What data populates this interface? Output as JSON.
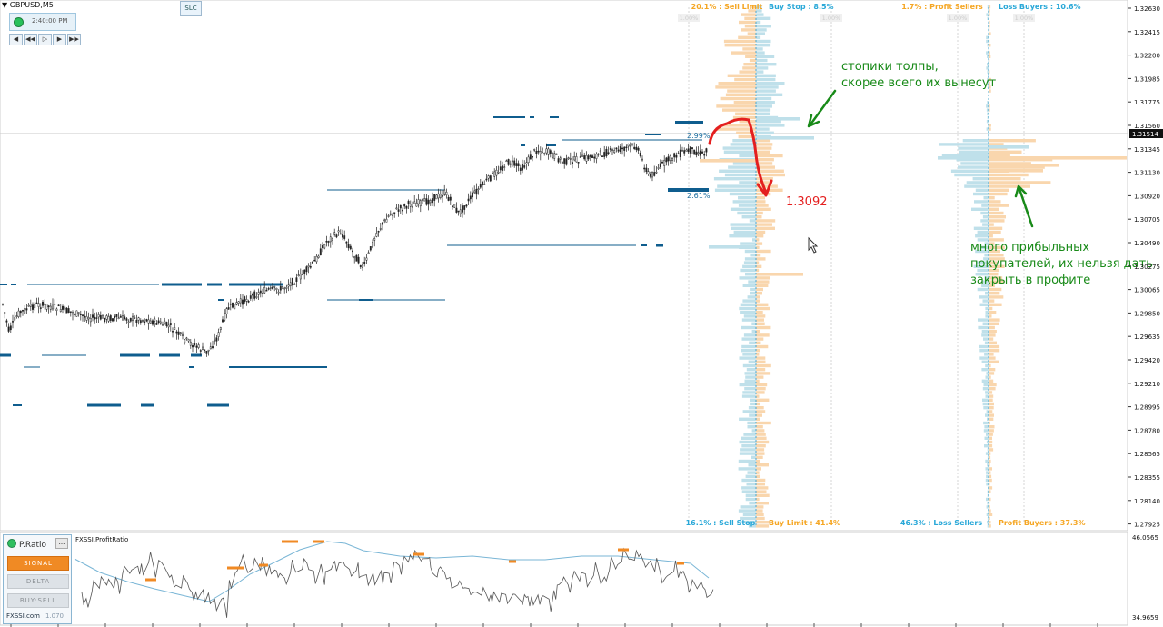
{
  "window": {
    "symbol": "GBPUSD,M5"
  },
  "toolbar": {
    "slc_label": "SLC",
    "time": "2:40:00 PM",
    "play_buttons": [
      "◀",
      "◀◀",
      "▷",
      "▶",
      "▶▶"
    ]
  },
  "orderbook": {
    "left": {
      "top_left": "20.1% : Sell Limit",
      "top_right": "Buy Stop : 8.5%",
      "bottom_left": "16.1% : Sell Stop",
      "bottom_right": "Buy Limit : 41.4%",
      "scale_left": "1.00%",
      "scale_right": "1.00%"
    },
    "right": {
      "top_left": "1.7% : Profit Sellers",
      "top_right": "Loss Buyers : 10.6%",
      "bottom_left": "46.3% : Loss Sellers",
      "bottom_right": "Profit Buyers : 37.3%",
      "scale_left": "1.00%",
      "scale_right": "1.00%"
    },
    "level_upper_pct": "2.99%",
    "level_lower_pct": "2.61%"
  },
  "annotations": {
    "crowd_stops_line1": "стопики толпы,",
    "crowd_stops_line2": "скорее всего их вынесут",
    "target_price": "1.3092",
    "profitable_buyers_line1": "много прибыльных",
    "profitable_buyers_line2": "покупателей, их нельзя дать",
    "profitable_buyers_line3": "закрыть в профите"
  },
  "price_axis": {
    "labels": [
      "1.32630",
      "1.32415",
      "1.32200",
      "1.31985",
      "1.31775",
      "1.31560",
      "1.31345",
      "1.31130",
      "1.30920",
      "1.30705",
      "1.30490",
      "1.30275",
      "1.30065",
      "1.29850",
      "1.29635",
      "1.29420",
      "1.29210",
      "1.28995",
      "1.28780",
      "1.28565",
      "1.28355",
      "1.28140",
      "1.27925"
    ],
    "current_price": "1.31514"
  },
  "indicator": {
    "name": "FXSSI.ProfitRatio",
    "axis_top": "46.0565",
    "axis_bottom": "34.9659",
    "panel_title": "P.Ratio",
    "menu": "...",
    "buttons": {
      "signal": "SIGNAL",
      "delta": "DELTA",
      "buysell": "BUY:SELL"
    },
    "brand": "FXSSI.com",
    "version": "1.070"
  },
  "colors": {
    "orange": "#f5a623",
    "blue_label": "#29a8d8",
    "bar_orange": "#f9d6ad",
    "bar_blue": "#bfe0ea",
    "level_blue": "#0f5d8e",
    "arrow_red": "#e41f1f",
    "text_green": "#188a18",
    "candle": "#222222"
  }
}
